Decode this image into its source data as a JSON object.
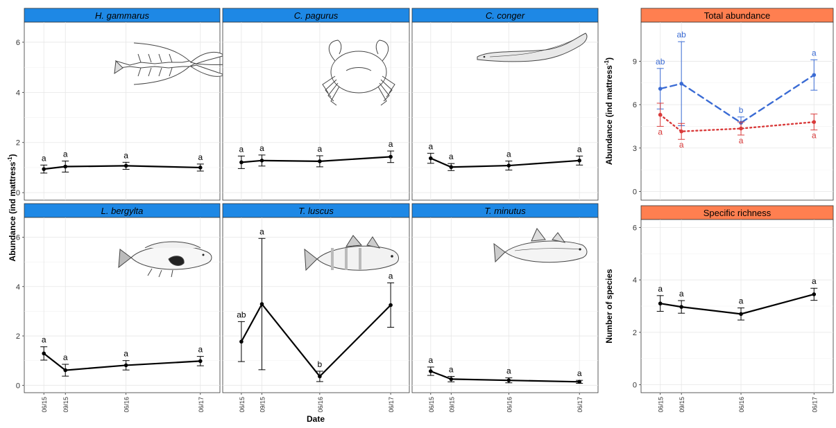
{
  "shared": {
    "x_tick_labels": [
      "06/15",
      "09/15",
      "06/16",
      "06/17"
    ],
    "x_axis_label": "Date",
    "y_axis_label_left": "Abundance (ind  mattress",
    "y_axis_label_left_sup": "-1",
    "y_axis_label_left_close": ")"
  },
  "chart_data": [
    {
      "type": "line",
      "title": "H. gammarus",
      "title_italic": true,
      "strip_color": "#1e88e5",
      "illustration": "lobster-illustration",
      "x": [
        "06/15",
        "09/15",
        "06/16",
        "06/17"
      ],
      "ylim": [
        -0.3,
        6.8
      ],
      "yticks": [
        0,
        2,
        4,
        6
      ],
      "series": [
        {
          "values": [
            0.94,
            1.04,
            1.07,
            1.0
          ],
          "err_low": [
            0.78,
            0.82,
            0.93,
            0.86
          ],
          "err_high": [
            1.1,
            1.26,
            1.21,
            1.14
          ],
          "labels": [
            "a",
            "a",
            "a",
            "a"
          ],
          "color": "#000000",
          "dash": "solid"
        }
      ]
    },
    {
      "type": "line",
      "title": "C. pagurus",
      "title_italic": true,
      "strip_color": "#1e88e5",
      "illustration": "crab-illustration",
      "x": [
        "06/15",
        "09/15",
        "06/16",
        "06/17"
      ],
      "ylim": [
        -0.3,
        6.8
      ],
      "yticks": [
        0,
        2,
        4,
        6
      ],
      "series": [
        {
          "values": [
            1.21,
            1.28,
            1.25,
            1.43
          ],
          "err_low": [
            0.96,
            1.06,
            1.03,
            1.2
          ],
          "err_high": [
            1.46,
            1.5,
            1.47,
            1.66
          ],
          "labels": [
            "a",
            "a",
            "a",
            "a"
          ],
          "color": "#000000",
          "dash": "solid"
        }
      ]
    },
    {
      "type": "line",
      "title": "C. conger",
      "title_italic": true,
      "strip_color": "#1e88e5",
      "illustration": "eel-illustration",
      "x": [
        "06/15",
        "09/15",
        "06/16",
        "06/17"
      ],
      "ylim": [
        -0.3,
        6.8
      ],
      "yticks": [
        0,
        2,
        4,
        6
      ],
      "series": [
        {
          "values": [
            1.37,
            1.02,
            1.08,
            1.28
          ],
          "err_low": [
            1.17,
            0.88,
            0.9,
            1.1
          ],
          "err_high": [
            1.57,
            1.16,
            1.26,
            1.46
          ],
          "labels": [
            "a",
            "a",
            "a",
            "a"
          ],
          "color": "#000000",
          "dash": "solid"
        }
      ]
    },
    {
      "type": "line",
      "title": "L. bergylta",
      "title_italic": true,
      "strip_color": "#1e88e5",
      "illustration": "wrasse-illustration",
      "x": [
        "06/15",
        "09/15",
        "06/16",
        "06/17"
      ],
      "ylim": [
        -0.3,
        6.8
      ],
      "yticks": [
        0,
        2,
        4,
        6
      ],
      "series": [
        {
          "values": [
            1.29,
            0.61,
            0.81,
            0.98
          ],
          "err_low": [
            1.02,
            0.37,
            0.62,
            0.79
          ],
          "err_high": [
            1.56,
            0.85,
            1.0,
            1.17
          ],
          "labels": [
            "a",
            "a",
            "a",
            "a"
          ],
          "color": "#000000",
          "dash": "solid"
        }
      ]
    },
    {
      "type": "line",
      "title": "T. luscus",
      "title_italic": true,
      "strip_color": "#1e88e5",
      "illustration": "pouting-illustration",
      "x": [
        "06/15",
        "09/15",
        "06/16",
        "06/17"
      ],
      "ylim": [
        -0.3,
        6.8
      ],
      "yticks": [
        0,
        2,
        4,
        6
      ],
      "series": [
        {
          "values": [
            1.77,
            3.29,
            0.36,
            3.25
          ],
          "err_low": [
            0.96,
            0.63,
            0.15,
            2.35
          ],
          "err_high": [
            2.58,
            5.95,
            0.57,
            4.15
          ],
          "labels": [
            "ab",
            "a",
            "b",
            "a"
          ],
          "color": "#000000",
          "dash": "solid"
        }
      ]
    },
    {
      "type": "line",
      "title": "T. minutus",
      "title_italic": true,
      "strip_color": "#1e88e5",
      "illustration": "poor-cod-illustration",
      "x": [
        "06/15",
        "09/15",
        "06/16",
        "06/17"
      ],
      "ylim": [
        -0.3,
        6.8
      ],
      "yticks": [
        0,
        2,
        4,
        6
      ],
      "series": [
        {
          "values": [
            0.57,
            0.25,
            0.2,
            0.14
          ],
          "err_low": [
            0.4,
            0.14,
            0.1,
            0.08
          ],
          "err_high": [
            0.74,
            0.36,
            0.3,
            0.2
          ],
          "labels": [
            "a",
            "a",
            "a",
            "a"
          ],
          "color": "#000000",
          "dash": "solid"
        }
      ]
    },
    {
      "type": "line",
      "title": "Total abundance",
      "title_italic": false,
      "strip_color": "#ff7f50",
      "ylabel": "Abundance (ind  mattress",
      "ylabel_sup": "-1",
      "ylabel_close": ")",
      "x": [
        "06/15",
        "09/15",
        "06/16",
        "06/17"
      ],
      "ylim": [
        -0.6,
        11.7
      ],
      "yticks": [
        0,
        3,
        6,
        9
      ],
      "series": [
        {
          "values": [
            7.1,
            7.45,
            4.75,
            8.05
          ],
          "err_low": [
            5.7,
            4.55,
            4.35,
            7.0
          ],
          "err_high": [
            8.5,
            10.35,
            5.15,
            9.1
          ],
          "labels": [
            "ab",
            "ab",
            "b",
            "a"
          ],
          "label_pos": "above",
          "color": "#3a6bd4",
          "dash": "dashed"
        },
        {
          "values": [
            5.3,
            4.15,
            4.35,
            4.8
          ],
          "err_low": [
            4.5,
            3.6,
            3.9,
            4.25
          ],
          "err_high": [
            6.1,
            4.7,
            4.8,
            5.35
          ],
          "labels": [
            "a",
            "a",
            "a",
            "a"
          ],
          "label_pos": "below",
          "color": "#d93a3a",
          "dash": "dotted"
        }
      ]
    },
    {
      "type": "line",
      "title": "Specific richness",
      "title_italic": false,
      "strip_color": "#ff7f50",
      "ylabel": "Number of species",
      "x": [
        "06/15",
        "09/15",
        "06/16",
        "06/17"
      ],
      "ylim": [
        -0.3,
        6.3
      ],
      "yticks": [
        0,
        2,
        4,
        6
      ],
      "series": [
        {
          "values": [
            3.1,
            2.97,
            2.7,
            3.45
          ],
          "err_low": [
            2.8,
            2.73,
            2.47,
            3.22
          ],
          "err_high": [
            3.4,
            3.21,
            2.93,
            3.68
          ],
          "labels": [
            "a",
            "a",
            "a",
            "a"
          ],
          "label_pos": "above",
          "color": "#000000",
          "dash": "solid"
        }
      ]
    }
  ]
}
